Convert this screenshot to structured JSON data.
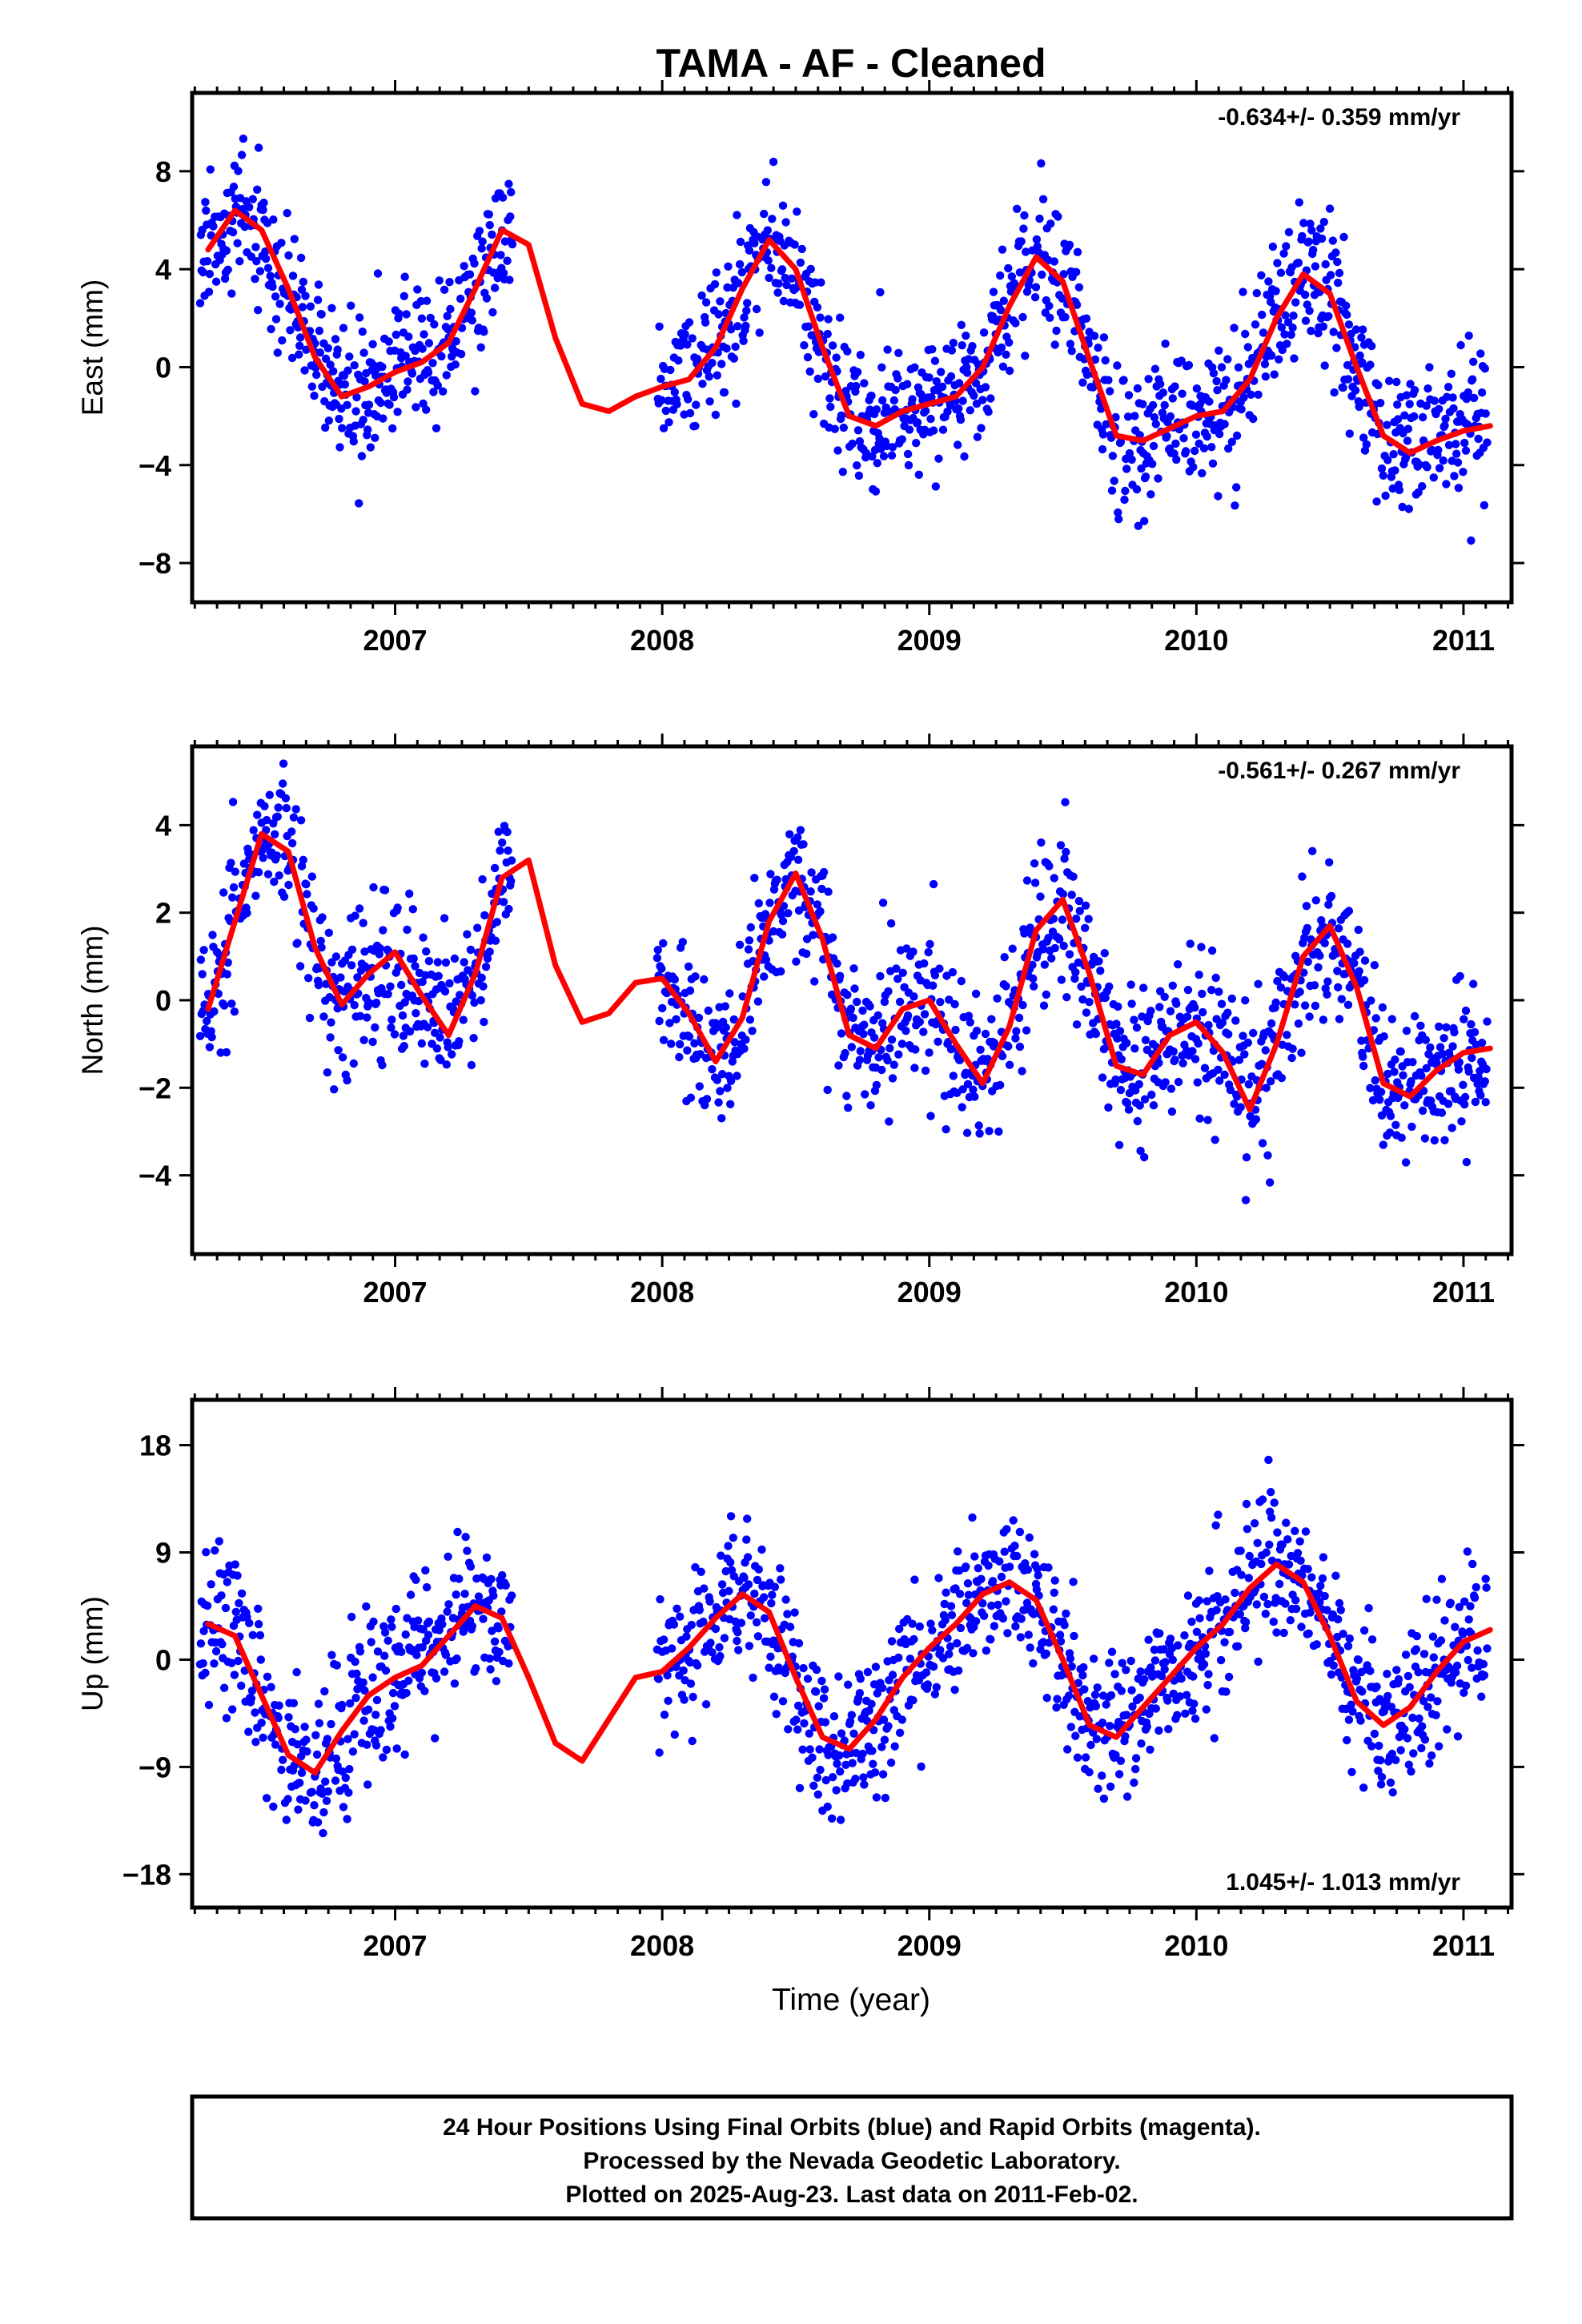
{
  "title": "TAMA  - AF - Cleaned",
  "xlabel": "Time (year)",
  "colors": {
    "points": "#0000ff",
    "fit": "#ff0000",
    "frame": "#000000"
  },
  "x_ticks": [
    "2007",
    "2008",
    "2009",
    "2010",
    "2011"
  ],
  "footer": {
    "line1": "24 Hour Positions Using Final Orbits (blue) and Rapid Orbits (magenta).",
    "line2": "Processed by the Nevada Geodetic Laboratory.",
    "line3": "Plotted on 2025-Aug-23. Last data on 2011-Feb-02."
  },
  "chart_data": [
    {
      "type": "scatter",
      "component": "east",
      "ylabel": "East (mm)",
      "rate_label": "-0.634+/- 0.359 mm/yr",
      "xlim": [
        2006.24,
        2011.18
      ],
      "ylim": [
        -9.6,
        11.2
      ],
      "y_ticks": [
        8,
        4,
        0,
        -4,
        -8
      ],
      "y_tick_labels": [
        "8",
        "4",
        "0",
        "−4",
        "−8"
      ],
      "series": [
        {
          "kind": "fit-line",
          "x": [
            2006.3,
            2006.4,
            2006.5,
            2006.6,
            2006.7,
            2006.8,
            2006.9,
            2007.0,
            2007.1,
            2007.2,
            2007.3,
            2007.4,
            2007.5,
            2007.6,
            2007.7,
            2007.8,
            2007.9,
            2008.0,
            2008.1,
            2008.2,
            2008.3,
            2008.4,
            2008.5,
            2008.6,
            2008.7,
            2008.8,
            2008.9,
            2009.0,
            2009.1,
            2009.2,
            2009.3,
            2009.4,
            2009.5,
            2009.6,
            2009.7,
            2009.8,
            2009.9,
            2010.0,
            2010.1,
            2010.2,
            2010.3,
            2010.4,
            2010.5,
            2010.6,
            2010.7,
            2010.8,
            2010.9,
            2011.0,
            2011.1
          ],
          "y": [
            4.8,
            6.4,
            5.6,
            3.2,
            0.4,
            -1.2,
            -0.8,
            -0.2,
            0.2,
            1.0,
            3.2,
            5.6,
            5.0,
            1.2,
            -1.5,
            -1.8,
            -1.2,
            -0.8,
            -0.5,
            0.8,
            3.2,
            5.2,
            4.0,
            0.8,
            -2.0,
            -2.4,
            -1.8,
            -1.5,
            -1.2,
            0.0,
            2.5,
            4.5,
            3.5,
            0.3,
            -2.8,
            -3.0,
            -2.5,
            -2.0,
            -1.8,
            -0.5,
            2.0,
            3.8,
            3.0,
            0.0,
            -2.8,
            -3.5,
            -3.0,
            -2.6,
            -2.4
          ]
        }
      ]
    },
    {
      "type": "scatter",
      "component": "north",
      "ylabel": "North (mm)",
      "rate_label": "-0.561+/- 0.267 mm/yr",
      "xlim": [
        2006.24,
        2011.18
      ],
      "ylim": [
        -5.8,
        5.8
      ],
      "y_ticks": [
        4,
        2,
        0,
        -2,
        -4
      ],
      "y_tick_labels": [
        "4",
        "2",
        "0",
        "−2",
        "−4"
      ],
      "series": [
        {
          "kind": "fit-line",
          "x": [
            2006.3,
            2006.4,
            2006.5,
            2006.6,
            2006.7,
            2006.8,
            2006.9,
            2007.0,
            2007.1,
            2007.2,
            2007.3,
            2007.4,
            2007.5,
            2007.6,
            2007.7,
            2007.8,
            2007.9,
            2008.0,
            2008.1,
            2008.2,
            2008.3,
            2008.4,
            2008.5,
            2008.6,
            2008.7,
            2008.8,
            2008.9,
            2009.0,
            2009.1,
            2009.2,
            2009.3,
            2009.4,
            2009.5,
            2009.6,
            2009.7,
            2009.8,
            2009.9,
            2010.0,
            2010.1,
            2010.2,
            2010.3,
            2010.4,
            2010.5,
            2010.6,
            2010.7,
            2010.8,
            2010.9,
            2011.0,
            2011.1
          ],
          "y": [
            -0.2,
            1.8,
            3.8,
            3.4,
            1.2,
            -0.1,
            0.6,
            1.1,
            0.1,
            -0.8,
            0.6,
            2.8,
            3.2,
            0.8,
            -0.5,
            -0.3,
            0.4,
            0.5,
            -0.3,
            -1.4,
            -0.4,
            1.8,
            2.9,
            1.4,
            -0.8,
            -1.1,
            -0.2,
            0.0,
            -1.0,
            -1.9,
            -0.6,
            1.6,
            2.3,
            0.6,
            -1.5,
            -1.7,
            -0.8,
            -0.5,
            -1.2,
            -2.5,
            -1.0,
            1.0,
            1.7,
            0.3,
            -1.9,
            -2.2,
            -1.6,
            -1.2,
            -1.1
          ]
        }
      ]
    },
    {
      "type": "scatter",
      "component": "up",
      "ylabel": "Up (mm)",
      "rate_label": "1.045+/- 1.013 mm/yr",
      "xlim": [
        2006.24,
        2011.18
      ],
      "ylim": [
        -20.8,
        21.8
      ],
      "y_ticks": [
        18,
        9,
        0,
        -9,
        -18
      ],
      "y_tick_labels": [
        "18",
        "9",
        "0",
        "−9",
        "−18"
      ],
      "series": [
        {
          "kind": "fit-line",
          "x": [
            2006.3,
            2006.4,
            2006.5,
            2006.6,
            2006.7,
            2006.8,
            2006.9,
            2007.0,
            2007.1,
            2007.2,
            2007.3,
            2007.4,
            2007.5,
            2007.6,
            2007.7,
            2007.8,
            2007.9,
            2008.0,
            2008.1,
            2008.2,
            2008.3,
            2008.4,
            2008.5,
            2008.6,
            2008.7,
            2008.8,
            2008.9,
            2009.0,
            2009.1,
            2009.2,
            2009.3,
            2009.4,
            2009.5,
            2009.6,
            2009.7,
            2009.8,
            2009.9,
            2010.0,
            2010.1,
            2010.2,
            2010.3,
            2010.4,
            2010.5,
            2010.6,
            2010.7,
            2010.8,
            2010.9,
            2011.0,
            2011.1
          ],
          "y": [
            3.0,
            2.0,
            -3.0,
            -8.0,
            -9.5,
            -6.0,
            -3.0,
            -1.5,
            -0.5,
            2.0,
            4.5,
            3.5,
            -1.5,
            -7.0,
            -8.5,
            -5.0,
            -1.5,
            -1.0,
            1.0,
            3.5,
            5.5,
            4.0,
            -1.5,
            -6.5,
            -7.5,
            -5.0,
            -1.5,
            1.0,
            3.0,
            5.5,
            6.5,
            5.0,
            0.0,
            -5.5,
            -6.5,
            -4.0,
            -1.5,
            1.0,
            3.0,
            6.0,
            8.0,
            6.5,
            2.0,
            -3.5,
            -5.5,
            -4.0,
            -1.0,
            1.5,
            2.5
          ]
        }
      ]
    }
  ]
}
